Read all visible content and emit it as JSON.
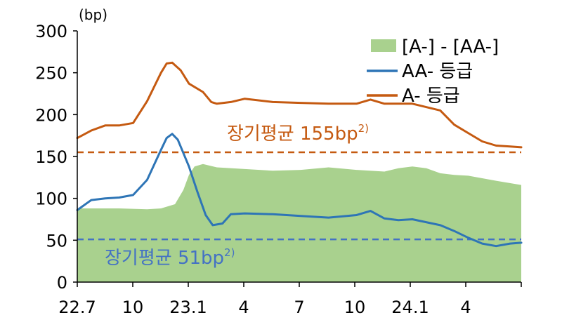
{
  "chart_data": {
    "type": "line",
    "unit": "(bp)",
    "ylim": [
      0,
      300
    ],
    "yticks": [
      0,
      50,
      100,
      150,
      200,
      250,
      300
    ],
    "x_tick_labels": [
      "22.7",
      "10",
      "23.1",
      "4",
      "7",
      "10",
      "24.1",
      "4"
    ],
    "grid": false,
    "legend_position": "top-right",
    "series": [
      {
        "name": "[A-] - [AA-]",
        "kind": "area",
        "color": "#a9d18e",
        "points": [
          [
            0,
            88
          ],
          [
            0.5,
            88
          ],
          [
            1.5,
            88
          ],
          [
            2.5,
            87
          ],
          [
            3.0,
            88
          ],
          [
            3.5,
            93
          ],
          [
            3.8,
            110
          ],
          [
            4.0,
            128
          ],
          [
            4.2,
            138
          ],
          [
            4.5,
            141
          ],
          [
            5.0,
            137
          ],
          [
            6.0,
            135
          ],
          [
            7.0,
            133
          ],
          [
            8.0,
            134
          ],
          [
            9.0,
            137
          ],
          [
            10.0,
            134
          ],
          [
            11.0,
            132
          ],
          [
            11.5,
            136
          ],
          [
            12.0,
            138
          ],
          [
            12.5,
            136
          ],
          [
            13.0,
            130
          ],
          [
            13.5,
            128
          ],
          [
            14.0,
            127
          ],
          [
            15.0,
            121
          ],
          [
            15.9,
            116
          ]
        ]
      },
      {
        "name": "AA- 등급",
        "kind": "line",
        "color": "#2e75b6",
        "points": [
          [
            0,
            86
          ],
          [
            0.5,
            98
          ],
          [
            1.0,
            100
          ],
          [
            1.5,
            101
          ],
          [
            2.0,
            104
          ],
          [
            2.5,
            122
          ],
          [
            3.0,
            158
          ],
          [
            3.2,
            172
          ],
          [
            3.4,
            177
          ],
          [
            3.6,
            170
          ],
          [
            4.0,
            138
          ],
          [
            4.3,
            108
          ],
          [
            4.6,
            80
          ],
          [
            4.85,
            68
          ],
          [
            5.2,
            70
          ],
          [
            5.5,
            81
          ],
          [
            6.0,
            82
          ],
          [
            7.0,
            81
          ],
          [
            8.0,
            79
          ],
          [
            9.0,
            77
          ],
          [
            10.0,
            80
          ],
          [
            10.5,
            85
          ],
          [
            11.0,
            76
          ],
          [
            11.5,
            74
          ],
          [
            12.0,
            75
          ],
          [
            13.0,
            68
          ],
          [
            13.5,
            61
          ],
          [
            14.0,
            53
          ],
          [
            14.5,
            46
          ],
          [
            15.0,
            43
          ],
          [
            15.5,
            46
          ],
          [
            15.9,
            47
          ]
        ]
      },
      {
        "name": "A- 등급",
        "kind": "line",
        "color": "#c55a11",
        "points": [
          [
            0,
            172
          ],
          [
            0.5,
            181
          ],
          [
            1.0,
            187
          ],
          [
            1.5,
            187
          ],
          [
            2.0,
            190
          ],
          [
            2.5,
            216
          ],
          [
            3.0,
            250
          ],
          [
            3.2,
            261
          ],
          [
            3.4,
            262
          ],
          [
            3.7,
            253
          ],
          [
            4.0,
            237
          ],
          [
            4.5,
            227
          ],
          [
            4.8,
            215
          ],
          [
            5.0,
            213
          ],
          [
            5.5,
            215
          ],
          [
            6.0,
            219
          ],
          [
            7.0,
            215
          ],
          [
            8.0,
            214
          ],
          [
            9.0,
            213
          ],
          [
            10.0,
            213
          ],
          [
            10.5,
            218
          ],
          [
            11.0,
            213
          ],
          [
            12.0,
            213
          ],
          [
            13.0,
            205
          ],
          [
            13.5,
            188
          ],
          [
            14.0,
            178
          ],
          [
            14.5,
            168
          ],
          [
            15.0,
            163
          ],
          [
            15.5,
            162
          ],
          [
            15.9,
            161
          ]
        ]
      }
    ],
    "reference_lines": [
      {
        "value": 155,
        "label": "장기평균 155bp",
        "sup": "2)",
        "color": "#c55a11"
      },
      {
        "value": 51,
        "label": "장기평균 51bp",
        "sup": "2)",
        "color": "#4472c4"
      }
    ]
  }
}
